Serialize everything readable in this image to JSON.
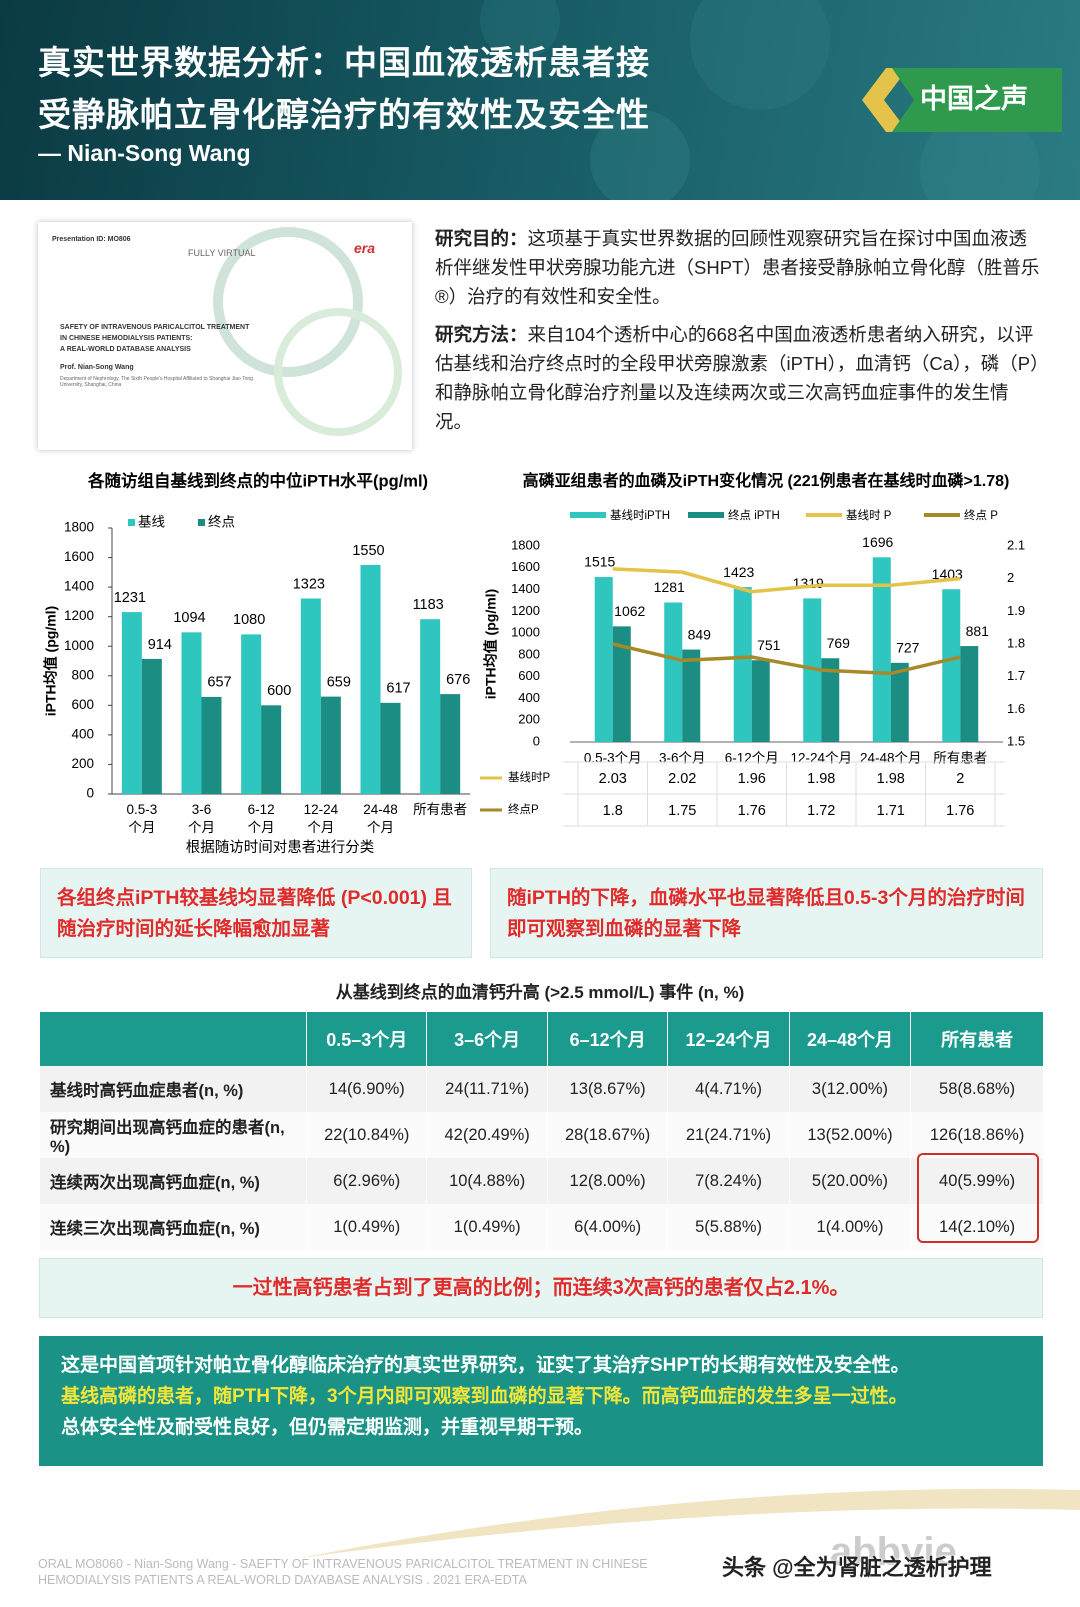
{
  "header": {
    "title_line1": "真实世界数据分析：中国血液透析患者接",
    "title_line2": "受静脉帕立骨化醇治疗的有效性及安全性",
    "author": "— Nian-Song Wang",
    "badge": "中国之声"
  },
  "slide": {
    "id": "Presentation ID: MO806",
    "event": "FULLY VIRTUAL",
    "logo": "era",
    "title_lines": [
      "SAFETY OF INTRAVENOUS PARICALCITOL TREATMENT",
      "IN CHINESE HEMODIALYSIS PATIENTS:",
      "A REAL-WORLD DATABASE ANALYSIS"
    ],
    "author": "Prof. Nian-Song Wang",
    "affiliation": "Department of Nephrology, The Sixth People's Hospital Affiliated to Shanghai Jiao Tong University, Shanghai, China"
  },
  "intro": [
    {
      "label": "研究目的：",
      "text": "这项基于真实世界数据的回顾性观察研究旨在探讨中国血液透析伴继发性甲状旁腺功能亢进（SHPT）患者接受静脉帕立骨化醇（胜普乐®）治疗的有效性和安全性。"
    },
    {
      "label": "研究方法：",
      "text": "来自104个透析中心的668名中国血液透析患者纳入研究，以评估基线和治疗终点时的全段甲状旁腺激素（iPTH），血清钙（Ca），磷（P）和静脉帕立骨化醇治疗剂量以及连续两次或三次高钙血症事件的发生情况。"
    }
  ],
  "chart1": {
    "type": "bar",
    "title": "各随访组自基线到终点的中位iPTH水平(pg/ml)",
    "y_label": "iPTH均值 (pg/ml)",
    "x_label": "根据随访时间对患者进行分类",
    "categories": [
      "0.5-3 个月",
      "3-6 个月",
      "6-12 个月",
      "12-24 个月",
      "24-48 个月",
      "所有患者"
    ],
    "series": [
      {
        "name": "基线",
        "color": "#2fc6c0",
        "values": [
          1231,
          1094,
          1080,
          1323,
          1550,
          1183
        ]
      },
      {
        "name": "终点",
        "color": "#1b8d83",
        "values": [
          914,
          657,
          600,
          659,
          617,
          676
        ]
      }
    ],
    "ylim": [
      0,
      1800
    ],
    "yticks": [
      0,
      200,
      400,
      600,
      800,
      1000,
      1200,
      1400,
      1600,
      1800
    ],
    "grid": false
  },
  "chart2": {
    "type": "bar-line",
    "title": "高磷亚组患者的血磷及iPTH变化情况 (221例患者在基线时血磷>1.78)",
    "y_label": "iPTH均值 (pg/ml)",
    "categories": [
      "0.5-3个月",
      "3-6个月",
      "6-12个月",
      "12-24个月",
      "24-48个月",
      "所有患者"
    ],
    "series": [
      {
        "name": "基线时iPTH",
        "color": "#2fc6c0",
        "values": [
          1515,
          1281,
          1423,
          1319,
          1696,
          1403
        ]
      },
      {
        "name": "终点 iPTH",
        "color": "#1b8d83",
        "values": [
          1062,
          849,
          751,
          769,
          727,
          881
        ]
      },
      {
        "name": "基线时 P",
        "color": "#e3c34a",
        "axis": "y2",
        "values": [
          2.03,
          2.02,
          1.96,
          1.98,
          1.98,
          2
        ]
      },
      {
        "name": "终点 P",
        "color": "#a68a2a",
        "axis": "y2",
        "values": [
          1.8,
          1.75,
          1.76,
          1.72,
          1.71,
          1.76
        ]
      }
    ],
    "table_rows": [
      "基线时P",
      "终点P"
    ],
    "ylim": [
      0,
      1800
    ],
    "yticks": [
      0,
      200,
      400,
      600,
      800,
      1000,
      1200,
      1400,
      1600,
      1800
    ],
    "y2lim": [
      1.5,
      2.1
    ],
    "y2ticks": [
      1.5,
      1.6,
      1.7,
      1.8,
      1.9,
      2,
      2.1
    ],
    "grid": false
  },
  "callouts": [
    "各组终点iPTH较基线均显著降低 (P<0.001) 且随治疗时间的延长降幅愈加显著",
    "随iPTH的下降，血磷水平也显著降低且0.5-3个月的治疗时间即可观察到血磷的显著下降"
  ],
  "table": {
    "title": "从基线到终点的血清钙升高 (>2.5 mmol/L) 事件 (n, %)",
    "header": [
      "0.5–3个月",
      "3–6个月",
      "6–12个月",
      "12–24个月",
      "24–48个月",
      "所有患者"
    ],
    "rows": [
      [
        "基线时高钙血症患者(n, %)",
        "14(6.90%)",
        "24(11.71%)",
        "13(8.67%)",
        "4(4.71%)",
        "3(12.00%)",
        "58(8.68%)"
      ],
      [
        "研究期间出现高钙血症的患者(n, %)",
        "22(10.84%)",
        "42(20.49%)",
        "28(18.67%)",
        "21(24.71%)",
        "13(52.00%)",
        "126(18.86%)"
      ],
      [
        "连续两次出现高钙血症(n, %)",
        "6(2.96%)",
        "10(4.88%)",
        "12(8.00%)",
        "7(8.24%)",
        "5(20.00%)",
        "40(5.99%)"
      ],
      [
        "连续三次出现高钙血症(n, %)",
        "1(0.49%)",
        "1(0.49%)",
        "6(4.00%)",
        "5(5.88%)",
        "1(4.00%)",
        "14(2.10%)"
      ]
    ],
    "note": "一过性高钙患者占到了更高的比例；而连续3次高钙的患者仅占2.1%。"
  },
  "conclusion": [
    "这是中国首项针对帕立骨化醇临床治疗的真实世界研究，证实了其治疗SHPT的长期有效性及安全性。",
    "基线高磷的患者，随PTH下降，3个月内即可观察到血磷的显著下降。而高钙血症的发生多呈一过性。",
    "总体安全性及耐受性良好，但仍需定期监测，并重视早期干预。"
  ],
  "footer": {
    "line1": "ORAL MO8060 - Nian-Song Wang - SAEFTY OF INTRAVENOUS PARICALCITOL TREATMENT IN CHINESE",
    "line2": "HEMODIALYSIS PATIENTS  A REAL-WORLD DAYABASE ANALYSIS . 2021 ERA-EDTA",
    "logo": "abbvie",
    "watermark": "头条 @全为肾脏之透析护理"
  }
}
